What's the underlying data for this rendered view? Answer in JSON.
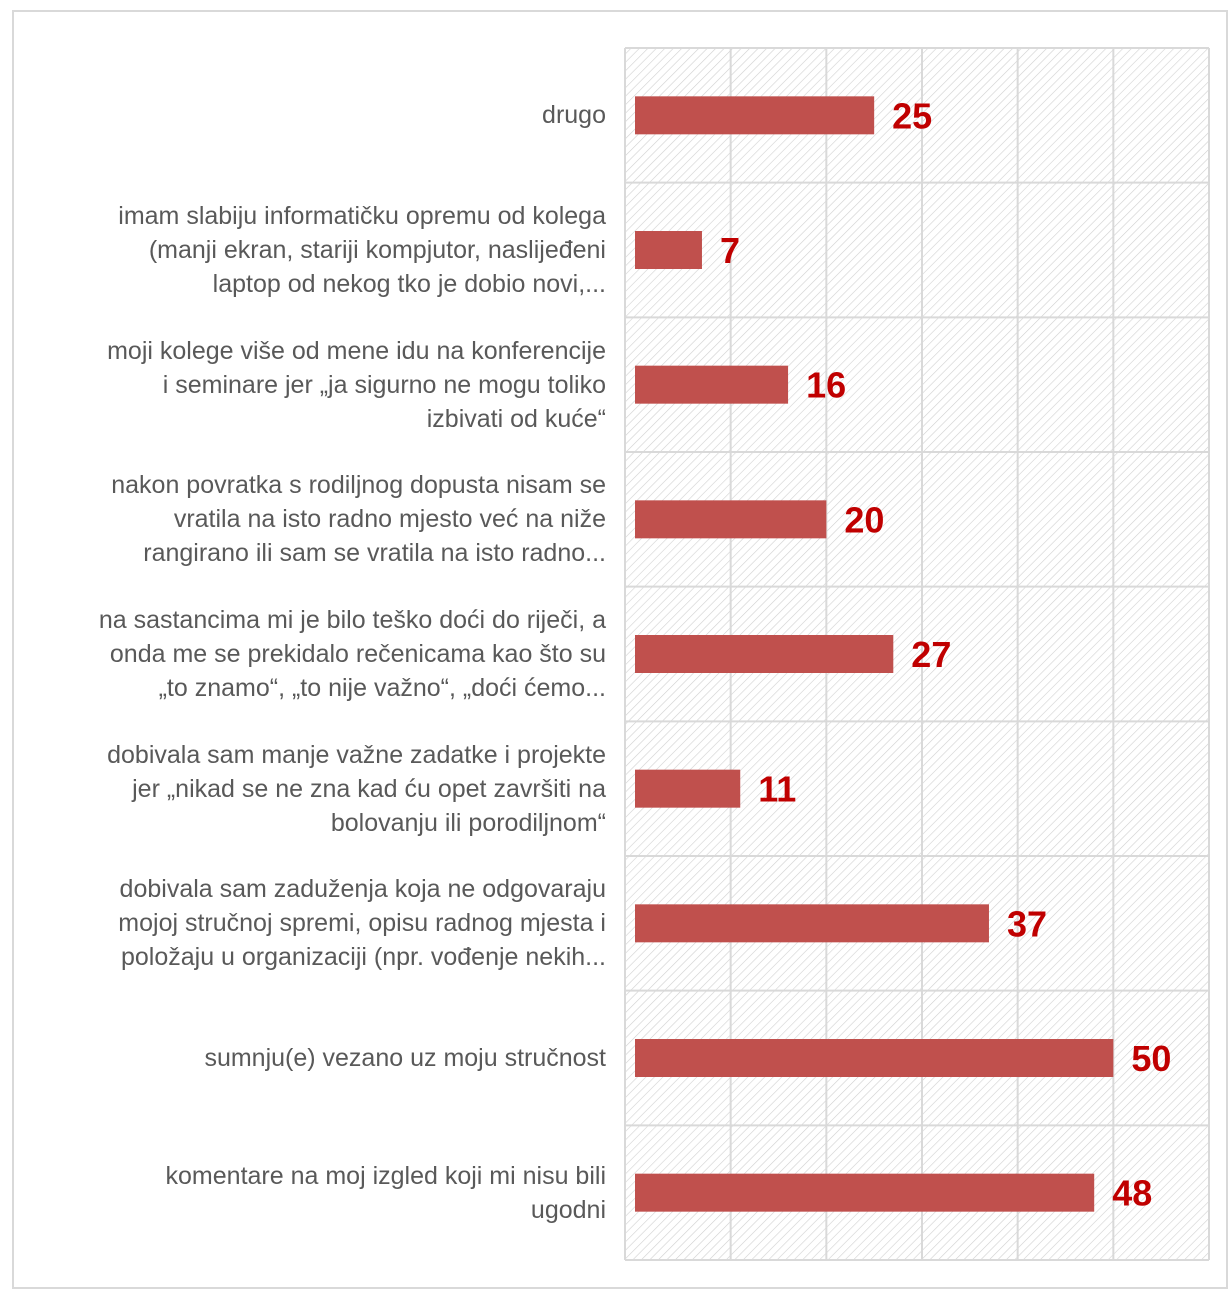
{
  "chart_data": {
    "type": "bar",
    "orientation": "horizontal",
    "categories": [
      "drugo",
      "imam slabiju informatičku opremu od kolega (manji ekran, stariji kompjutor, naslijeđeni laptop od nekog tko je dobio novi,...",
      "moji kolege više od mene idu na konferencije i seminare jer „ja sigurno ne mogu toliko izbivati od kuće“",
      "nakon povratka s rodiljnog dopusta nisam se vratila na isto radno mjesto već na niže rangirano ili sam se vratila na isto radno...",
      "na sastancima mi je bilo teško doći do riječi, a onda me se prekidalo rečenicama kao što su „to znamo“, „to nije važno“, „doći ćemo...",
      "dobivala sam manje važne zadatke i projekte jer „nikad se ne zna kad ću opet završiti na bolovanju ili porodiljnom“",
      "dobivala sam zaduženja koja ne odgovaraju mojoj stručnoj spremi, opisu radnog mjesta i položaju u organizaciji (npr. vođenje nekih...",
      "sumnju(e) vezano uz moju stručnost",
      "komentare na moj izgled koji mi nisu bili ugodni"
    ],
    "category_lines": [
      [
        "drugo"
      ],
      [
        "imam slabiju informatičku opremu od kolega",
        "(manji ekran, stariji kompjutor, naslijeđeni",
        "laptop od nekog tko je dobio novi,..."
      ],
      [
        "moji kolege više od mene idu na konferencije",
        "i seminare jer „ja sigurno ne mogu toliko",
        "izbivati od kuće“"
      ],
      [
        "nakon povratka s rodiljnog dopusta nisam se",
        "vratila na isto radno mjesto već na niže",
        "rangirano ili sam se vratila na isto radno..."
      ],
      [
        "na sastancima mi je bilo teško doći do riječi, a",
        "onda me se prekidalo rečenicama kao što su",
        "„to znamo“, „to nije važno“, „doći ćemo..."
      ],
      [
        "dobivala sam manje važne zadatke i projekte",
        "jer „nikad se ne zna kad ću opet završiti na",
        "bolovanju ili porodiljnom“"
      ],
      [
        "dobivala sam zaduženja koja ne odgovaraju",
        "mojoj stručnoj spremi, opisu radnog mjesta i",
        "položaju u organizaciji (npr. vođenje nekih..."
      ],
      [
        "sumnju(e) vezano uz moju stručnost"
      ],
      [
        "komentare na moj izgled koji mi nisu bili",
        "ugodni"
      ]
    ],
    "values": [
      25,
      7,
      16,
      20,
      27,
      11,
      37,
      50,
      48
    ],
    "data_labels": [
      "25",
      "7",
      "16",
      "20",
      "27",
      "11",
      "37",
      "50",
      "48"
    ],
    "xlim": [
      0,
      60
    ],
    "grid": true,
    "legend": "none",
    "title": "",
    "xlabel": "",
    "ylabel": "",
    "colors": {
      "bar": "#c0504d",
      "value_label": "#c00000",
      "category_label": "#595959",
      "grid": "#d9d9d9",
      "hatch": "#d0d0d0"
    }
  }
}
